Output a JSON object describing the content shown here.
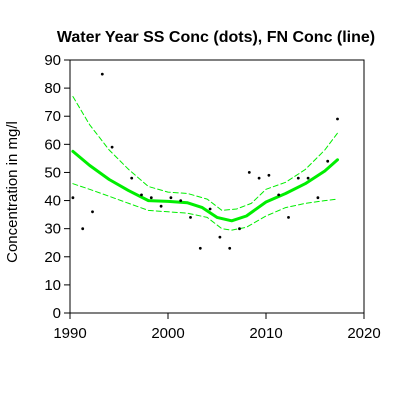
{
  "chart_data": {
    "type": "scatter",
    "title": "Water Year SS Conc (dots), FN Conc (line)",
    "xlabel": "",
    "ylabel": "Concentration in mg/l",
    "xlim": [
      1990,
      2020
    ],
    "ylim": [
      0,
      90
    ],
    "xticks": [
      1990,
      2000,
      2010,
      2020
    ],
    "yticks": [
      0,
      10,
      20,
      30,
      40,
      50,
      60,
      70,
      80,
      90
    ],
    "grid": false,
    "legend": "none",
    "series": [
      {
        "kind": "points",
        "color": "#000000",
        "x": [
          1990.3,
          1991.3,
          1992.3,
          1993.3,
          1994.3,
          1996.3,
          1997.3,
          1998.3,
          1999.3,
          2000.3,
          2001.3,
          2002.3,
          2003.3,
          2004.3,
          2005.3,
          2006.3,
          2007.3,
          2008.3,
          2009.3,
          2010.3,
          2011.3,
          2012.3,
          2013.3,
          2014.3,
          2015.3,
          2016.3,
          2017.3
        ],
        "y": [
          41,
          30,
          36,
          85,
          59,
          48,
          42,
          41,
          38,
          41,
          40,
          34,
          23,
          37,
          27,
          23,
          30,
          50,
          48,
          49,
          42,
          34,
          48,
          48,
          41,
          54,
          69
        ]
      },
      {
        "kind": "line",
        "style": "solid",
        "color": "#00ee00",
        "x": [
          1990.3,
          1992,
          1994,
          1996,
          1998,
          2000,
          2002,
          2003.5,
          2005,
          2006.5,
          2008,
          2010,
          2012,
          2014,
          2016,
          2017.3
        ],
        "y": [
          57.5,
          52.5,
          47.5,
          43.5,
          40,
          39.7,
          39.2,
          37.5,
          34,
          32.8,
          34.5,
          39.5,
          42.5,
          46,
          50.5,
          54.5
        ]
      },
      {
        "kind": "line",
        "style": "dashed",
        "color": "#00ee00",
        "x": [
          1990.3,
          1992,
          1994,
          1996,
          1998,
          2000,
          2002,
          2004,
          2005.5,
          2007,
          2008.5,
          2010,
          2012,
          2014,
          2016,
          2017.3
        ],
        "y": [
          77,
          67,
          58,
          51,
          45,
          43,
          42.5,
          40.5,
          36.5,
          37,
          39,
          44,
          46.5,
          51,
          58,
          64
        ]
      },
      {
        "kind": "line",
        "style": "dashed",
        "color": "#00ee00",
        "x": [
          1990.3,
          1992,
          1994,
          1996,
          1998,
          2000,
          2002,
          2004,
          2005.5,
          2006.5,
          2008,
          2010,
          2012,
          2014,
          2016,
          2017.3
        ],
        "y": [
          46,
          44,
          41.5,
          39,
          36.5,
          36,
          35.5,
          34,
          30,
          29.5,
          30.5,
          34.5,
          37.5,
          39,
          40,
          40.5
        ]
      }
    ]
  }
}
